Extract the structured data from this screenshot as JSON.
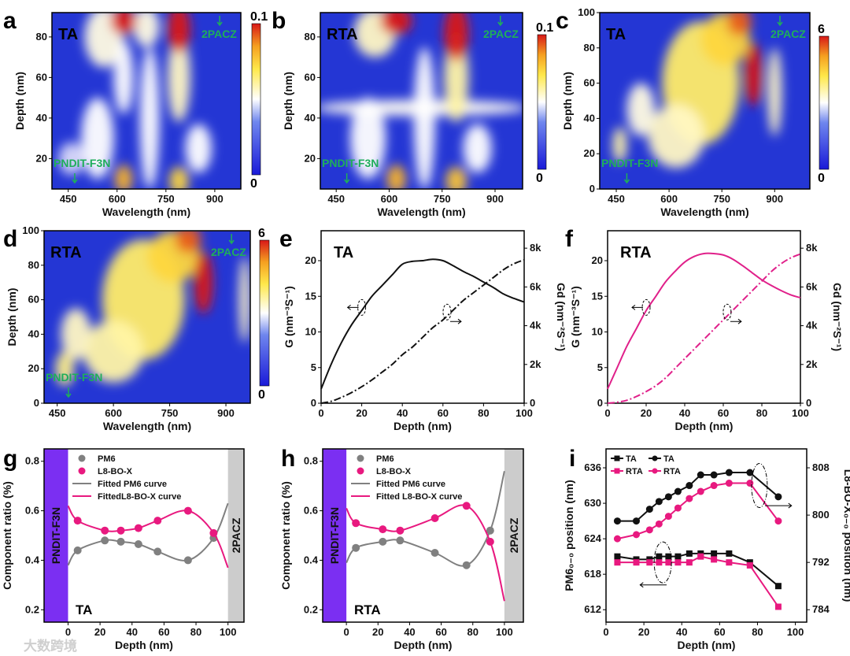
{
  "watermark": "大数跨境",
  "chart_data": [
    {
      "panel": "a",
      "type": "heatmap",
      "label": "TA",
      "xlabel": "Wavelength (nm)",
      "ylabel": "Depth (nm)",
      "xlim": [
        400,
        980
      ],
      "ylim": [
        5,
        92
      ],
      "xticks": [
        450,
        600,
        750,
        900
      ],
      "yticks": [
        20,
        40,
        60,
        80
      ],
      "colorbar": {
        "min_label": "0",
        "max_label": "0.1"
      },
      "annotations": [
        {
          "text": "2PACZ",
          "wavelength": 915,
          "depth": 82
        },
        {
          "text": "PNDIT-F3N",
          "wavelength": 470,
          "depth": 15
        }
      ],
      "hotspots": [
        [
          540,
          30,
          50,
          20,
          0.3
        ],
        [
          560,
          80,
          60,
          15,
          0.35
        ],
        [
          700,
          40,
          30,
          35,
          0.3
        ],
        [
          690,
          85,
          40,
          10,
          0.35
        ],
        [
          620,
          60,
          30,
          18,
          0.3
        ],
        [
          790,
          60,
          35,
          22,
          0.4
        ],
        [
          850,
          25,
          40,
          12,
          0.3
        ],
        [
          460,
          20,
          40,
          8,
          0.25
        ],
        [
          620,
          88,
          40,
          7,
          1.0
        ],
        [
          790,
          84,
          35,
          12,
          1.0
        ],
        [
          620,
          10,
          28,
          7,
          0.75
        ],
        [
          790,
          9,
          30,
          7,
          0.65
        ]
      ]
    },
    {
      "panel": "b",
      "type": "heatmap",
      "label": "RTA",
      "xlabel": "Wavelength (nm)",
      "ylabel": "Depth (nm)",
      "xlim": [
        405,
        978
      ],
      "ylim": [
        5,
        92
      ],
      "xticks": [
        450,
        600,
        750,
        900
      ],
      "yticks": [
        20,
        40,
        60,
        80
      ],
      "colorbar": {
        "min_label": "0",
        "max_label": "0.1"
      },
      "annotations": [
        {
          "text": "2PACZ",
          "wavelength": 915,
          "depth": 82
        },
        {
          "text": "PNDIT-F3N",
          "wavelength": 480,
          "depth": 16
        }
      ],
      "hotspots": [
        [
          690,
          45,
          300,
          4,
          0.32
        ],
        [
          540,
          30,
          50,
          20,
          0.3
        ],
        [
          700,
          40,
          30,
          35,
          0.3
        ],
        [
          560,
          82,
          60,
          12,
          0.4
        ],
        [
          790,
          60,
          35,
          22,
          0.45
        ],
        [
          850,
          25,
          40,
          12,
          0.3
        ],
        [
          620,
          88,
          45,
          7,
          1.0
        ],
        [
          790,
          82,
          35,
          14,
          1.0
        ],
        [
          620,
          10,
          28,
          7,
          0.75
        ],
        [
          790,
          9,
          30,
          7,
          0.7
        ]
      ]
    },
    {
      "panel": "c",
      "type": "heatmap",
      "label": "TA",
      "xlabel": "Wavelength (nm)",
      "ylabel": "Depth (nm)",
      "xlim": [
        403,
        1000
      ],
      "ylim": [
        0,
        100
      ],
      "xticks": [
        450,
        600,
        750,
        900
      ],
      "yticks": [
        0,
        20,
        40,
        60,
        80,
        100
      ],
      "colorbar": {
        "min_label": "0",
        "max_label": "6"
      },
      "annotations": [
        {
          "text": "2PACZ",
          "wavelength": 915,
          "depth": 82
        },
        {
          "text": "PNDIT-F3N",
          "wavelength": 480,
          "depth": 12
        }
      ],
      "hotspots": [
        [
          690,
          60,
          110,
          35,
          0.55
        ],
        [
          620,
          30,
          80,
          18,
          0.4
        ],
        [
          760,
          85,
          70,
          15,
          0.65
        ],
        [
          520,
          45,
          40,
          15,
          0.35
        ],
        [
          460,
          25,
          20,
          10,
          0.45
        ],
        [
          840,
          65,
          25,
          18,
          1.0
        ],
        [
          800,
          95,
          35,
          8,
          0.9
        ],
        [
          900,
          55,
          20,
          25,
          0.4
        ]
      ]
    },
    {
      "panel": "d",
      "type": "heatmap",
      "label": "RTA",
      "xlabel": "Wavelength (nm)",
      "ylabel": "Depth (nm)",
      "xlim": [
        415,
        965
      ],
      "ylim": [
        0,
        100
      ],
      "xticks": [
        450,
        600,
        750,
        900
      ],
      "yticks": [
        0,
        20,
        40,
        60,
        80,
        100
      ],
      "colorbar": {
        "min_label": "0",
        "max_label": "6"
      },
      "annotations": [
        {
          "text": "2PACZ",
          "wavelength": 915,
          "depth": 82
        },
        {
          "text": "PNDIT-F3N",
          "wavelength": 480,
          "depth": 12
        }
      ],
      "hotspots": [
        [
          680,
          60,
          110,
          35,
          0.55
        ],
        [
          600,
          30,
          80,
          18,
          0.45
        ],
        [
          760,
          85,
          70,
          15,
          0.65
        ],
        [
          500,
          40,
          40,
          15,
          0.4
        ],
        [
          470,
          20,
          25,
          10,
          0.5
        ],
        [
          840,
          70,
          25,
          18,
          1.0
        ],
        [
          800,
          95,
          35,
          8,
          0.9
        ],
        [
          950,
          60,
          15,
          25,
          0.4
        ]
      ]
    },
    {
      "panel": "e",
      "type": "line",
      "label": "TA",
      "xlabel": "Depth (nm)",
      "ylabel": "G (nm⁻³S⁻¹)",
      "ylabel2": "Gd (nm⁻²S⁻¹)",
      "xlim": [
        0,
        100
      ],
      "ylim": [
        0,
        24.2
      ],
      "ylim2": [
        0,
        8.9
      ],
      "xticks": [
        0,
        20,
        40,
        60,
        80,
        100
      ],
      "yticks": [
        0,
        5,
        10,
        15,
        20
      ],
      "yticks2": [
        0,
        2,
        4,
        6,
        8
      ],
      "yticklabels2": [
        "0",
        "2k",
        "4k",
        "6k",
        "8k"
      ],
      "color": "#111111",
      "x": [
        0,
        5,
        10,
        15,
        20,
        25,
        30,
        35,
        40,
        45,
        50,
        55,
        60,
        65,
        70,
        75,
        80,
        85,
        90,
        95,
        100
      ],
      "series": [
        {
          "name": "G",
          "axis": "left",
          "values": [
            2,
            5.5,
            8.5,
            11,
            13,
            15,
            16.5,
            18,
            19.5,
            19.9,
            20,
            20.2,
            20,
            19.3,
            18.5,
            17.8,
            17,
            16.2,
            15.3,
            14.7,
            14.2
          ]
        },
        {
          "name": "Gd (k)",
          "axis": "right",
          "values": [
            0,
            0.1,
            0.3,
            0.55,
            0.85,
            1.2,
            1.6,
            2.0,
            2.5,
            2.9,
            3.4,
            3.9,
            4.3,
            4.8,
            5.3,
            5.7,
            6.1,
            6.5,
            6.9,
            7.2,
            7.4
          ]
        }
      ]
    },
    {
      "panel": "f",
      "type": "line",
      "label": "RTA",
      "xlabel": "Depth (nm)",
      "ylabel": "G (nm⁻³S⁻¹)",
      "ylabel2": "Gd (nm⁻²S⁻¹)",
      "xlim": [
        0,
        100
      ],
      "ylim": [
        0,
        24.2
      ],
      "ylim2": [
        0,
        8.9
      ],
      "xticks": [
        0,
        20,
        40,
        60,
        80,
        100
      ],
      "yticks": [
        0,
        5,
        10,
        15,
        20
      ],
      "yticks2": [
        0,
        2,
        4,
        6,
        8
      ],
      "yticklabels2": [
        "0",
        "2k",
        "4k",
        "6k",
        "8k"
      ],
      "color": "#e0208a",
      "x": [
        0,
        5,
        10,
        15,
        20,
        25,
        30,
        35,
        40,
        45,
        50,
        55,
        60,
        65,
        70,
        75,
        80,
        85,
        90,
        95,
        100
      ],
      "series": [
        {
          "name": "G",
          "axis": "left",
          "values": [
            2,
            5,
            8,
            10.5,
            13,
            15,
            17,
            18.5,
            19.8,
            20.6,
            21,
            21,
            20.8,
            20.2,
            19.3,
            18.3,
            17.3,
            16.5,
            15.8,
            15.2,
            14.8
          ]
        },
        {
          "name": "Gd (k)",
          "axis": "right",
          "values": [
            0,
            0.05,
            0.15,
            0.35,
            0.6,
            0.9,
            1.3,
            1.8,
            2.3,
            2.8,
            3.3,
            3.8,
            4.3,
            4.8,
            5.3,
            5.8,
            6.3,
            6.8,
            7.2,
            7.5,
            7.7
          ]
        }
      ]
    },
    {
      "panel": "g",
      "type": "scatter",
      "label": "TA",
      "xlabel": "Depth (nm)",
      "ylabel": "Component ratio (%)",
      "xlim": [
        -15,
        110
      ],
      "ylim": [
        0.15,
        0.85
      ],
      "xticks": [
        0,
        20,
        40,
        60,
        80,
        100
      ],
      "yticks": [
        0.2,
        0.4,
        0.6,
        0.8
      ],
      "bands": [
        {
          "text": "PNDIT-F3N",
          "from": -15,
          "to": 0,
          "color": "#7b2ff2"
        },
        {
          "text": "2PACZ",
          "from": 100,
          "to": 110,
          "color": "#cccccc"
        }
      ],
      "legend": [
        "PM6",
        "L8-BO-X",
        "Fitted PM6 curve",
        "FittedL8-BO-X curve"
      ],
      "series": [
        {
          "name": "PM6",
          "color": "#808080",
          "x": [
            6,
            23,
            33,
            44,
            56,
            75,
            91
          ],
          "values": [
            0.44,
            0.48,
            0.475,
            0.465,
            0.435,
            0.4,
            0.49
          ],
          "fit_x": [
            0,
            6,
            23,
            33,
            44,
            56,
            75,
            91,
            100
          ],
          "fit": [
            0.38,
            0.44,
            0.48,
            0.475,
            0.465,
            0.435,
            0.4,
            0.49,
            0.63
          ]
        },
        {
          "name": "L8-BO-X",
          "color": "#e8197f",
          "x": [
            6,
            23,
            33,
            44,
            56,
            75,
            91
          ],
          "values": [
            0.56,
            0.52,
            0.52,
            0.53,
            0.56,
            0.6,
            0.51
          ],
          "fit_x": [
            0,
            6,
            23,
            33,
            44,
            56,
            75,
            91,
            100
          ],
          "fit": [
            0.62,
            0.56,
            0.52,
            0.52,
            0.53,
            0.56,
            0.6,
            0.51,
            0.37
          ]
        }
      ]
    },
    {
      "panel": "h",
      "type": "scatter",
      "label": "RTA",
      "xlabel": "Depth (nm)",
      "ylabel": "Component ratio (%)",
      "xlim": [
        -15,
        112
      ],
      "ylim": [
        0.15,
        0.85
      ],
      "xticks": [
        0,
        20,
        40,
        60,
        80,
        100
      ],
      "yticks": [
        0.2,
        0.4,
        0.6,
        0.8
      ],
      "bands": [
        {
          "text": "PNDIT-F3N",
          "from": -15,
          "to": 0,
          "color": "#7b2ff2"
        },
        {
          "text": "2PACZ",
          "from": 100,
          "to": 112,
          "color": "#cccccc"
        }
      ],
      "legend": [
        "PM6",
        "L8-BO-X",
        "Fitted PM6 curve",
        "Fitted L8-BO-X curve"
      ],
      "series": [
        {
          "name": "PM6",
          "color": "#808080",
          "x": [
            6,
            23,
            34,
            56,
            76,
            91
          ],
          "values": [
            0.45,
            0.475,
            0.48,
            0.43,
            0.38,
            0.52
          ],
          "fit_x": [
            0,
            6,
            23,
            34,
            56,
            76,
            91,
            100
          ],
          "fit": [
            0.39,
            0.45,
            0.475,
            0.48,
            0.43,
            0.38,
            0.52,
            0.76
          ]
        },
        {
          "name": "L8-BO-X",
          "color": "#e8197f",
          "x": [
            6,
            23,
            34,
            56,
            76,
            91
          ],
          "values": [
            0.55,
            0.525,
            0.52,
            0.57,
            0.62,
            0.475
          ],
          "fit_x": [
            0,
            6,
            23,
            34,
            56,
            76,
            91,
            100
          ],
          "fit": [
            0.61,
            0.55,
            0.525,
            0.52,
            0.57,
            0.62,
            0.475,
            0.235
          ]
        }
      ]
    },
    {
      "panel": "i",
      "type": "line",
      "xlabel": "Depth (nm)",
      "ylabel": "PM6₀₋₀ position (nm)",
      "ylabel2": "L8-BO-X₀₋₀ position (nm)",
      "xlim": [
        0,
        106
      ],
      "ylim": [
        609.9,
        639.2
      ],
      "ylim2": [
        781.9,
        811.2
      ],
      "xticks": [
        0,
        20,
        40,
        60,
        80,
        100
      ],
      "yticks": [
        612,
        618,
        624,
        630,
        636
      ],
      "yticks2": [
        784,
        792,
        800,
        808
      ],
      "legend": [
        "TA",
        "TA",
        "RTA",
        "RTA"
      ],
      "x": [
        6,
        16,
        23,
        28,
        33,
        38,
        44,
        50,
        57,
        65,
        76,
        91
      ],
      "series": [
        {
          "name": "TA PM6",
          "marker": "square",
          "axis": "left",
          "color": "#111111",
          "values": [
            621,
            620.5,
            620.5,
            621,
            621,
            621,
            621.5,
            621.5,
            621.5,
            621.5,
            620,
            616
          ]
        },
        {
          "name": "RTA PM6",
          "marker": "square",
          "axis": "left",
          "color": "#e8197f",
          "values": [
            620,
            620,
            620,
            620,
            620,
            620,
            620,
            621,
            620.5,
            620,
            619.5,
            612.5
          ]
        },
        {
          "name": "TA L8-BO-X",
          "marker": "circle",
          "axis": "right",
          "color": "#111111",
          "values": [
            799,
            799,
            801,
            802.3,
            803.1,
            804,
            805,
            806.8,
            806.8,
            807.2,
            807.2,
            803.1
          ]
        },
        {
          "name": "RTA L8-BO-X",
          "marker": "circle",
          "axis": "right",
          "color": "#e8197f",
          "values": [
            796,
            796.7,
            797.5,
            798.5,
            799.8,
            801.2,
            802.8,
            804,
            805,
            805.4,
            805.4,
            799
          ]
        }
      ]
    }
  ]
}
